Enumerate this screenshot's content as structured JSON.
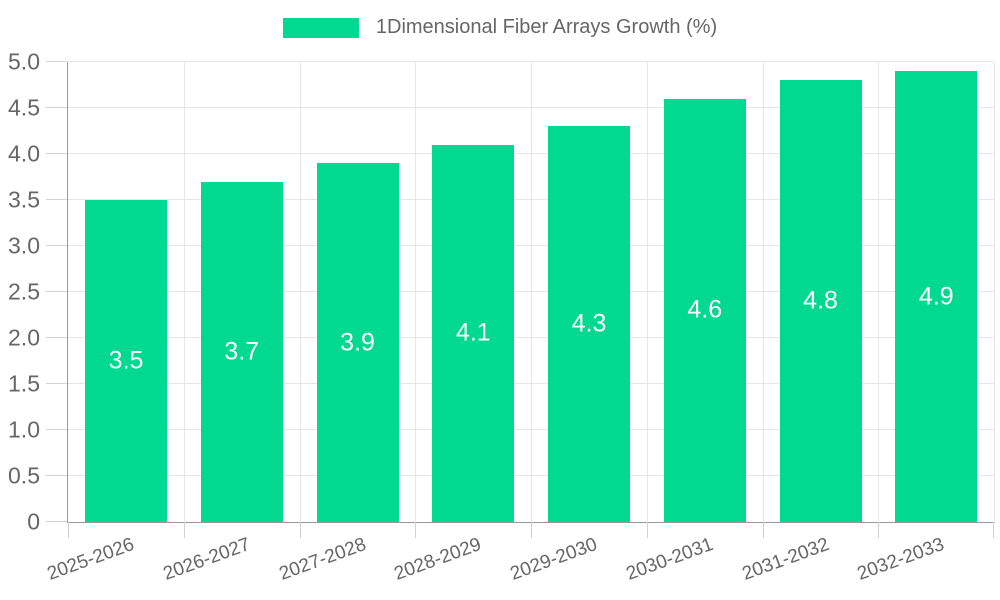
{
  "legend": {
    "label": "1Dimensional Fiber Arrays Growth (%)"
  },
  "chart_data": {
    "type": "bar",
    "title": "",
    "xlabel": "",
    "ylabel": "",
    "legend_position": "top",
    "grid": true,
    "categories": [
      "2025-2026",
      "2026-2027",
      "2027-2028",
      "2028-2029",
      "2029-2030",
      "2030-2031",
      "2031-2032",
      "2032-2033"
    ],
    "series": [
      {
        "name": "1Dimensional Fiber Arrays Growth (%)",
        "values": [
          3.5,
          3.7,
          3.9,
          4.1,
          4.3,
          4.6,
          4.8,
          4.9
        ]
      }
    ],
    "data_labels": [
      "3.5",
      "3.7",
      "3.9",
      "4.1",
      "4.3",
      "4.6",
      "4.8",
      "4.9"
    ],
    "ylim": [
      0,
      5
    ],
    "ytick_step": 0.5,
    "ytick_labels": [
      "0",
      "0.5",
      "1.0",
      "1.5",
      "2.0",
      "2.5",
      "3.0",
      "3.5",
      "4.0",
      "4.5",
      "5.0"
    ],
    "colors": {
      "bar": "#00d98f",
      "bar_label": "#ffffff",
      "axis_text": "#666666",
      "axis_line": "#999999",
      "tick": "#d2d2d2",
      "grid": "#e6e6e6",
      "background": "#ffffff"
    }
  }
}
